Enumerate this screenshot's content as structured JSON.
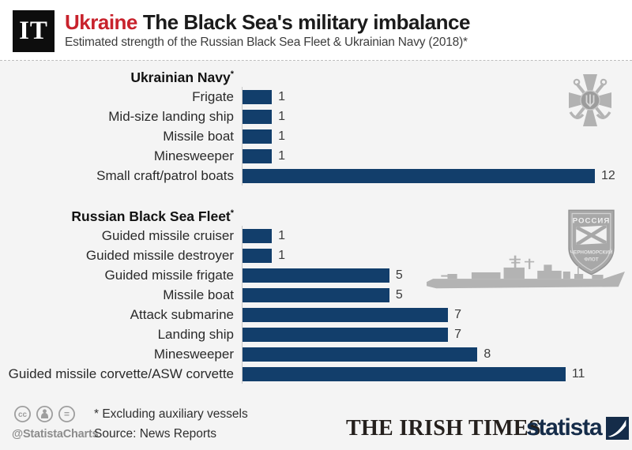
{
  "header": {
    "logo_text": "IT",
    "title_highlight": "Ukraine",
    "title_rest": "The Black Sea's military imbalance",
    "subtitle": "Estimated strength of the Russian Black Sea Fleet & Ukrainian Navy (2018)*"
  },
  "chart_data": {
    "type": "bar",
    "orientation": "horizontal",
    "xlim": [
      0,
      12
    ],
    "grid": false,
    "bar_color": "#123e6b",
    "sections": [
      {
        "title": "Ukrainian Navy",
        "footnote_mark": "*",
        "categories": [
          "Frigate",
          "Mid-size landing ship",
          "Missile boat",
          "Minesweeper",
          "Small craft/patrol boats"
        ],
        "values": [
          1,
          1,
          1,
          1,
          12
        ]
      },
      {
        "title": "Russian Black Sea Fleet",
        "footnote_mark": "*",
        "categories": [
          "Guided missile cruiser",
          "Guided missile destroyer",
          "Guided missile frigate",
          "Missile boat",
          "Attack submarine",
          "Landing ship",
          "Minesweeper",
          "Guided missile corvette/ASW corvette"
        ],
        "values": [
          1,
          1,
          5,
          5,
          7,
          7,
          8,
          11
        ]
      }
    ]
  },
  "emblems": {
    "russian_patch": {
      "top": "РОССИЯ",
      "line1": "ЧЕРНОМОРСКИЙ",
      "line2": "ФЛОТ"
    }
  },
  "footer": {
    "icons": {
      "cc": "cc",
      "nd": "="
    },
    "credit": "@StatistaCharts",
    "footnote": "* Excluding auxiliary vessels",
    "source": "Source: News Reports",
    "publisher": "THE IRISH TIMES",
    "brand": "statista"
  },
  "colors": {
    "bar": "#123e6b",
    "accent_red": "#c8222c",
    "background": "#f4f4f4",
    "header_background": "#ffffff",
    "statista_navy": "#152c49",
    "emblem_gray": "#b2b2b2"
  }
}
